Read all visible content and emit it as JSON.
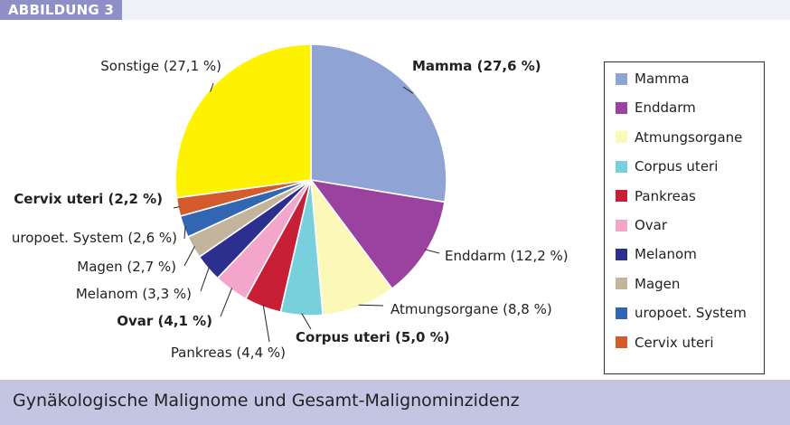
{
  "figure_tag": "ABBILDUNG 3",
  "caption": "Gynäkologische Malignome und Gesamt-Malignominzidenz",
  "colors": {
    "Mamma": "#8fa4d5",
    "Enddarm": "#9b42a0",
    "Atmungsorgane": "#fbf8b8",
    "Corpus uteri": "#77d0dc",
    "Pankreas": "#c81f36",
    "Ovar": "#f4a5cc",
    "Melanom": "#2d2f8e",
    "Magen": "#c3b49c",
    "uropoet. System": "#3166b3",
    "Cervix uteri": "#d45b2e",
    "Sonstige": "#fff200"
  },
  "chart_data": {
    "type": "pie",
    "slices": [
      {
        "name": "Mamma",
        "value": 27.6,
        "label": "Mamma (27,6 %)",
        "bold": true
      },
      {
        "name": "Enddarm",
        "value": 12.2,
        "label": "Enddarm (12,2 %)",
        "bold": false
      },
      {
        "name": "Atmungsorgane",
        "value": 8.8,
        "label": "Atmungsorgane (8,8 %)",
        "bold": false
      },
      {
        "name": "Corpus uteri",
        "value": 5.0,
        "label": "Corpus uteri (5,0 %)",
        "bold": true
      },
      {
        "name": "Pankreas",
        "value": 4.4,
        "label": "Pankreas (4,4 %)",
        "bold": false
      },
      {
        "name": "Ovar",
        "value": 4.1,
        "label": "Ovar (4,1 %)",
        "bold": true
      },
      {
        "name": "Melanom",
        "value": 3.3,
        "label": "Melanom (3,3 %)",
        "bold": false
      },
      {
        "name": "Magen",
        "value": 2.7,
        "label": "Magen (2,7 %)",
        "bold": false
      },
      {
        "name": "uropoet. System",
        "value": 2.6,
        "label": "uropoet. System (2,6 %)",
        "bold": false
      },
      {
        "name": "Cervix uteri",
        "value": 2.2,
        "label": "Cervix uteri (2,2 %)",
        "bold": true
      },
      {
        "name": "Sonstige",
        "value": 27.1,
        "label": "Sonstige (27,1 %)",
        "bold": false
      }
    ],
    "legend": {
      "placement": "right",
      "entries": [
        "Mamma",
        "Enddarm",
        "Atmungsorgane",
        "Corpus uteri",
        "Pankreas",
        "Ovar",
        "Melanom",
        "Magen",
        "uropoet. System",
        "Cervix uteri"
      ]
    }
  }
}
